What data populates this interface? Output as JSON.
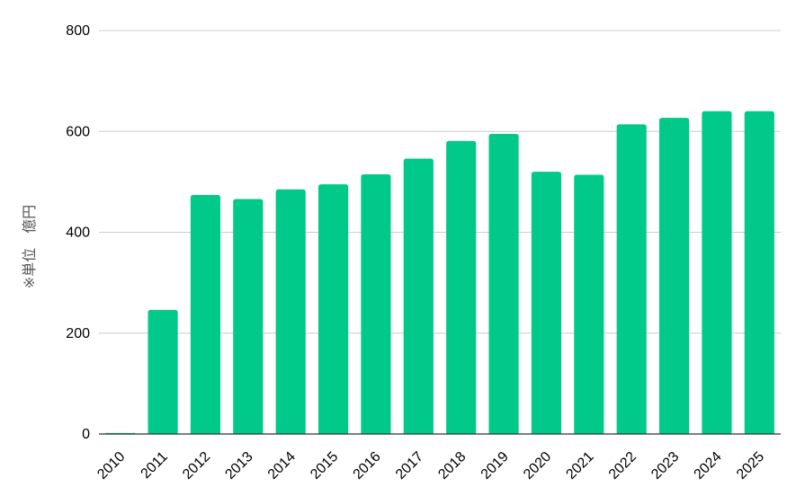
{
  "chart_data": {
    "type": "bar",
    "title": "",
    "xlabel": "",
    "ylabel": "※単位　億円",
    "categories": [
      "2010",
      "2011",
      "2012",
      "2013",
      "2014",
      "2015",
      "2016",
      "2017",
      "2018",
      "2019",
      "2020",
      "2021",
      "2022",
      "2023",
      "2024",
      "2025"
    ],
    "values": [
      2,
      246,
      474,
      466,
      485,
      495,
      515,
      546,
      581,
      595,
      520,
      514,
      614,
      627,
      640,
      640
    ],
    "ylim": [
      0,
      800
    ],
    "yticks": [
      0,
      200,
      400,
      600,
      800
    ],
    "grid": true,
    "legend": "none",
    "bar_color": "#00c98a",
    "grid_color": "#cccccc",
    "axis_color": "#333333"
  }
}
